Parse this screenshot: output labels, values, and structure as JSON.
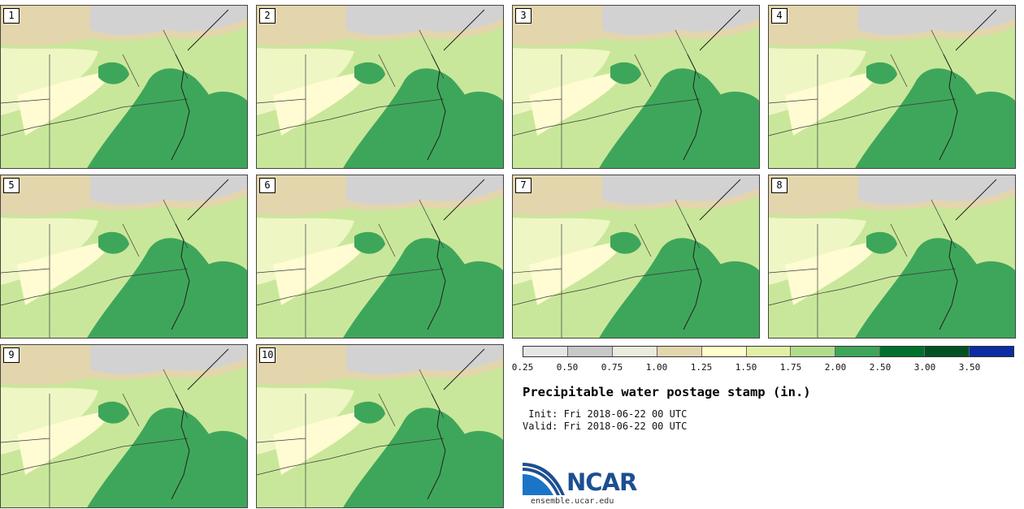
{
  "panels": [
    {
      "label": "1"
    },
    {
      "label": "2"
    },
    {
      "label": "3"
    },
    {
      "label": "4"
    },
    {
      "label": "5"
    },
    {
      "label": "6"
    },
    {
      "label": "7"
    },
    {
      "label": "8"
    },
    {
      "label": "9"
    },
    {
      "label": "10"
    }
  ],
  "colorbar": {
    "colors": [
      "#e6e6e6",
      "#c8c8c8",
      "#ebebde",
      "#e3d6ad",
      "#ffffcc",
      "#e2f0a6",
      "#b2dc8c",
      "#3ea65a",
      "#00712d",
      "#005223",
      "#0c2ca2"
    ],
    "tick_labels": [
      "0.25",
      "0.50",
      "0.75",
      "1.00",
      "1.25",
      "1.50",
      "1.75",
      "2.00",
      "2.50",
      "3.00",
      "3.50"
    ]
  },
  "title": "Precipitable water postage stamp (in.)",
  "init_line": " Init: Fri 2018-06-22 00 UTC",
  "valid_line": "Valid: Fri 2018-06-22 00 UTC",
  "logo": {
    "text": "NCAR",
    "url": "ensemble.ucar.edu"
  }
}
